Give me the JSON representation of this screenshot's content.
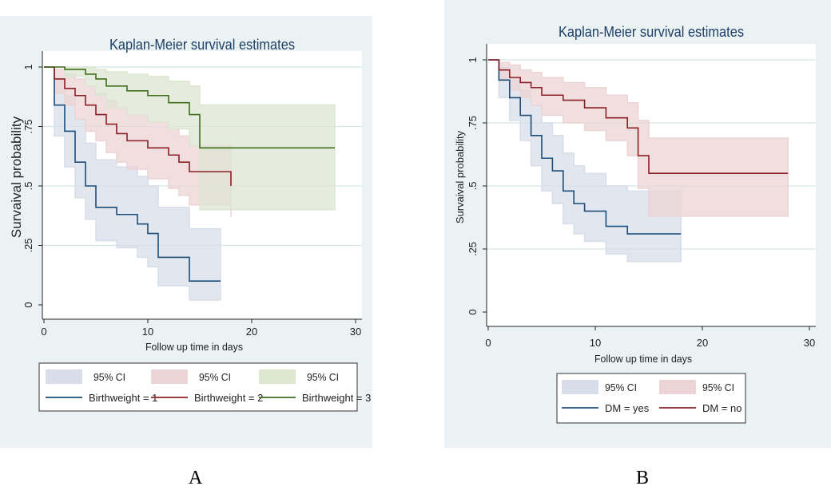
{
  "panel_labels": {
    "a": "A",
    "b": "B"
  },
  "colors": {
    "panel_bg": "#eaf2f3",
    "grid": "#d4e6e8",
    "series1_line": "#1b4d7a",
    "series1_fill": "#d7dee9",
    "series2_line": "#8b1f26",
    "series2_fill": "#ecd4d6",
    "series3_line": "#3f6e1c",
    "series3_fill": "#dde6d1"
  },
  "chart_data": [
    {
      "type": "line",
      "panel": "A",
      "title": "Kaplan-Meier survival estimates",
      "xlabel": "Follow up time in days",
      "ylabel": "Survaival probability",
      "xlim": [
        0,
        30
      ],
      "ylim": [
        0,
        1
      ],
      "xticks": [
        "0",
        "10",
        "20",
        "30"
      ],
      "yticks": [
        "0",
        ".25",
        ".5",
        ".75",
        "1"
      ],
      "ytick_values": [
        0,
        0.25,
        0.5,
        0.75,
        1
      ],
      "xtick_values": [
        0,
        10,
        20,
        30
      ],
      "series": [
        {
          "name": "Birthweight = 1",
          "ci_label": "95% CI",
          "color_key": "series1",
          "x": [
            0,
            1,
            2,
            3,
            4,
            5,
            7,
            9,
            10,
            11,
            14,
            17
          ],
          "survival": [
            1,
            0.84,
            0.73,
            0.6,
            0.5,
            0.41,
            0.38,
            0.34,
            0.3,
            0.2,
            0.1,
            0.1
          ],
          "upper": [
            1,
            0.95,
            0.88,
            0.78,
            0.68,
            0.61,
            0.58,
            0.54,
            0.5,
            0.41,
            0.32,
            0.32
          ],
          "lower": [
            1,
            0.71,
            0.58,
            0.45,
            0.36,
            0.27,
            0.24,
            0.2,
            0.16,
            0.08,
            0.02,
            0.02
          ]
        },
        {
          "name": "Birthweight = 2",
          "ci_label": "95% CI",
          "color_key": "series2",
          "x": [
            0,
            1,
            2,
            3,
            4,
            5,
            6,
            7,
            8,
            10,
            12,
            13,
            14,
            18
          ],
          "survival": [
            1,
            0.95,
            0.91,
            0.88,
            0.84,
            0.8,
            0.76,
            0.72,
            0.69,
            0.66,
            0.63,
            0.6,
            0.56,
            0.5
          ],
          "upper": [
            1,
            0.99,
            0.97,
            0.95,
            0.92,
            0.89,
            0.86,
            0.83,
            0.8,
            0.77,
            0.74,
            0.71,
            0.67,
            0.62
          ],
          "lower": [
            1,
            0.89,
            0.84,
            0.78,
            0.73,
            0.69,
            0.64,
            0.6,
            0.57,
            0.53,
            0.49,
            0.46,
            0.42,
            0.37
          ]
        },
        {
          "name": "Birthweight = 3",
          "ci_label": "95% CI",
          "color_key": "series3",
          "x": [
            0,
            2,
            4,
            5,
            6,
            8,
            10,
            12,
            14,
            15,
            28
          ],
          "survival": [
            1,
            0.99,
            0.97,
            0.95,
            0.92,
            0.9,
            0.88,
            0.85,
            0.8,
            0.66,
            0.66
          ],
          "upper": [
            1,
            1.0,
            1.0,
            0.99,
            0.98,
            0.97,
            0.96,
            0.94,
            0.92,
            0.84,
            0.84
          ],
          "lower": [
            1,
            0.96,
            0.92,
            0.88,
            0.83,
            0.8,
            0.77,
            0.74,
            0.67,
            0.4,
            0.4
          ]
        }
      ],
      "legend": {
        "placement": "bottom",
        "ci_label": "95% CI",
        "entries": [
          "Birthweight = 1",
          "Birthweight = 2",
          "Birthweight = 3"
        ]
      }
    },
    {
      "type": "line",
      "panel": "B",
      "title": "Kaplan-Meier survival estimates",
      "xlabel": "Follow up time in days",
      "ylabel": "Survaival probability",
      "xlim": [
        0,
        30
      ],
      "ylim": [
        0,
        1
      ],
      "xticks": [
        "0",
        "10",
        "20",
        "30"
      ],
      "yticks": [
        "0",
        ".25",
        ".5",
        ".75",
        "1"
      ],
      "ytick_values": [
        0,
        0.25,
        0.5,
        0.75,
        1
      ],
      "xtick_values": [
        0,
        10,
        20,
        30
      ],
      "series": [
        {
          "name": "DM = yes",
          "ci_label": "95% CI",
          "color_key": "series1",
          "x": [
            0,
            1,
            2,
            3,
            4,
            5,
            6,
            7,
            8,
            9,
            11,
            13,
            18
          ],
          "survival": [
            1,
            0.92,
            0.85,
            0.78,
            0.7,
            0.61,
            0.56,
            0.48,
            0.43,
            0.4,
            0.34,
            0.31,
            0.31
          ],
          "upper": [
            1,
            0.97,
            0.93,
            0.88,
            0.82,
            0.75,
            0.7,
            0.63,
            0.58,
            0.55,
            0.5,
            0.48,
            0.48
          ],
          "lower": [
            1,
            0.85,
            0.76,
            0.68,
            0.58,
            0.48,
            0.43,
            0.35,
            0.31,
            0.28,
            0.23,
            0.2,
            0.2
          ]
        },
        {
          "name": "DM = no",
          "ci_label": "95% CI",
          "color_key": "series2",
          "x": [
            0,
            1,
            2,
            3,
            4,
            5,
            7,
            9,
            11,
            13,
            14,
            15,
            28
          ],
          "survival": [
            1,
            0.96,
            0.93,
            0.91,
            0.89,
            0.86,
            0.84,
            0.81,
            0.77,
            0.73,
            0.62,
            0.55,
            0.55
          ],
          "upper": [
            1,
            0.99,
            0.98,
            0.96,
            0.95,
            0.93,
            0.91,
            0.89,
            0.86,
            0.83,
            0.76,
            0.69,
            0.69
          ],
          "lower": [
            1,
            0.92,
            0.88,
            0.85,
            0.82,
            0.78,
            0.75,
            0.72,
            0.68,
            0.62,
            0.49,
            0.38,
            0.38
          ]
        }
      ],
      "legend": {
        "placement": "bottom",
        "ci_label": "95% CI",
        "entries": [
          "DM = yes",
          "DM = no"
        ]
      }
    }
  ]
}
